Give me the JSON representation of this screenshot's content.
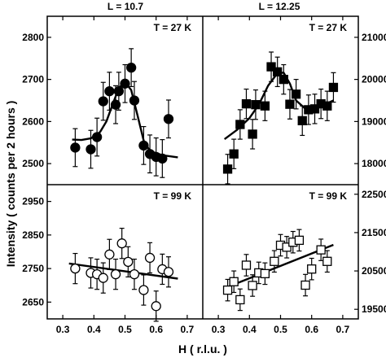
{
  "chart_data": {
    "type": "scatter",
    "xlabel": "H ( r.l.u. )",
    "ylabel": "Intensity ( counts per 2 hours )",
    "x_ticks": [
      "0.3",
      "0.4",
      "0.5",
      "0.6",
      "0.7"
    ],
    "xlim": [
      0.25,
      0.75
    ],
    "columns": [
      {
        "title": "L = 10.7"
      },
      {
        "title": "L = 12.25"
      }
    ],
    "panels": [
      {
        "id": "L10.7-T27K",
        "row": 0,
        "col": 0,
        "temperature": "T = 27 K",
        "marker": "circle",
        "filled": true,
        "ylim": [
          2450,
          2850
        ],
        "y_ticks": [
          2500,
          2600,
          2700,
          2800
        ],
        "tick_side": "left",
        "points": [
          {
            "x": 0.34,
            "y": 2538,
            "err": 45
          },
          {
            "x": 0.39,
            "y": 2534,
            "err": 45
          },
          {
            "x": 0.41,
            "y": 2563,
            "err": 45
          },
          {
            "x": 0.43,
            "y": 2648,
            "err": 45
          },
          {
            "x": 0.45,
            "y": 2672,
            "err": 45
          },
          {
            "x": 0.47,
            "y": 2640,
            "err": 45
          },
          {
            "x": 0.48,
            "y": 2672,
            "err": 45
          },
          {
            "x": 0.5,
            "y": 2690,
            "err": 45
          },
          {
            "x": 0.52,
            "y": 2728,
            "err": 45
          },
          {
            "x": 0.53,
            "y": 2650,
            "err": 45
          },
          {
            "x": 0.56,
            "y": 2543,
            "err": 45
          },
          {
            "x": 0.58,
            "y": 2523,
            "err": 45
          },
          {
            "x": 0.6,
            "y": 2516,
            "err": 45
          },
          {
            "x": 0.62,
            "y": 2512,
            "err": 45
          },
          {
            "x": 0.64,
            "y": 2606,
            "err": 45
          }
        ],
        "fit": [
          [
            0.33,
            2557
          ],
          [
            0.36,
            2556
          ],
          [
            0.39,
            2560
          ],
          [
            0.42,
            2575
          ],
          [
            0.44,
            2600
          ],
          [
            0.46,
            2640
          ],
          [
            0.48,
            2680
          ],
          [
            0.5,
            2693
          ],
          [
            0.52,
            2675
          ],
          [
            0.54,
            2615
          ],
          [
            0.56,
            2555
          ],
          [
            0.58,
            2530
          ],
          [
            0.62,
            2520
          ],
          [
            0.67,
            2515
          ]
        ]
      },
      {
        "id": "L12.25-T27K",
        "row": 0,
        "col": 1,
        "temperature": "T = 27 K",
        "marker": "square",
        "filled": true,
        "ylim": [
          17500,
          21500
        ],
        "y_ticks": [
          18000,
          19000,
          20000,
          21000
        ],
        "tick_side": "right",
        "points": [
          {
            "x": 0.33,
            "y": 17870,
            "err": 350
          },
          {
            "x": 0.35,
            "y": 18230,
            "err": 350
          },
          {
            "x": 0.37,
            "y": 18930,
            "err": 350
          },
          {
            "x": 0.39,
            "y": 19420,
            "err": 350
          },
          {
            "x": 0.41,
            "y": 18700,
            "err": 350
          },
          {
            "x": 0.42,
            "y": 19400,
            "err": 350
          },
          {
            "x": 0.45,
            "y": 19370,
            "err": 350
          },
          {
            "x": 0.47,
            "y": 20300,
            "err": 350
          },
          {
            "x": 0.49,
            "y": 20180,
            "err": 350
          },
          {
            "x": 0.51,
            "y": 20000,
            "err": 350
          },
          {
            "x": 0.53,
            "y": 19410,
            "err": 350
          },
          {
            "x": 0.55,
            "y": 19650,
            "err": 350
          },
          {
            "x": 0.57,
            "y": 19020,
            "err": 350
          },
          {
            "x": 0.59,
            "y": 19280,
            "err": 350
          },
          {
            "x": 0.61,
            "y": 19300,
            "err": 350
          },
          {
            "x": 0.63,
            "y": 19420,
            "err": 350
          },
          {
            "x": 0.65,
            "y": 19370,
            "err": 350
          },
          {
            "x": 0.67,
            "y": 19810,
            "err": 350
          }
        ],
        "fit": [
          [
            0.32,
            18580
          ],
          [
            0.36,
            18800
          ],
          [
            0.4,
            19080
          ],
          [
            0.43,
            19400
          ],
          [
            0.46,
            19850
          ],
          [
            0.49,
            20150
          ],
          [
            0.51,
            20160
          ],
          [
            0.53,
            19900
          ],
          [
            0.55,
            19500
          ],
          [
            0.58,
            19300
          ],
          [
            0.62,
            19330
          ],
          [
            0.67,
            19500
          ]
        ]
      },
      {
        "id": "L10.7-T99K",
        "row": 1,
        "col": 0,
        "temperature": "T = 99 K",
        "marker": "circle",
        "filled": false,
        "ylim": [
          2600,
          3000
        ],
        "y_ticks": [
          2650,
          2750,
          2850,
          2950
        ],
        "tick_side": "left",
        "points": [
          {
            "x": 0.34,
            "y": 2750,
            "err": 45
          },
          {
            "x": 0.39,
            "y": 2737,
            "err": 45
          },
          {
            "x": 0.41,
            "y": 2733,
            "err": 45
          },
          {
            "x": 0.43,
            "y": 2722,
            "err": 45
          },
          {
            "x": 0.45,
            "y": 2792,
            "err": 45
          },
          {
            "x": 0.47,
            "y": 2733,
            "err": 45
          },
          {
            "x": 0.49,
            "y": 2825,
            "err": 45
          },
          {
            "x": 0.51,
            "y": 2770,
            "err": 45
          },
          {
            "x": 0.53,
            "y": 2733,
            "err": 45
          },
          {
            "x": 0.56,
            "y": 2686,
            "err": 45
          },
          {
            "x": 0.58,
            "y": 2782,
            "err": 45
          },
          {
            "x": 0.6,
            "y": 2638,
            "err": 45
          },
          {
            "x": 0.62,
            "y": 2748,
            "err": 45
          },
          {
            "x": 0.64,
            "y": 2740,
            "err": 45
          }
        ],
        "fit": [
          [
            0.32,
            2765
          ],
          [
            0.67,
            2720
          ]
        ]
      },
      {
        "id": "L12.25-T99K",
        "row": 1,
        "col": 1,
        "temperature": "T = 99 K",
        "marker": "square",
        "filled": false,
        "ylim": [
          19250,
          22750
        ],
        "y_ticks": [
          19500,
          20500,
          21500,
          22500
        ],
        "tick_side": "right",
        "points": [
          {
            "x": 0.33,
            "y": 20000,
            "err": 280
          },
          {
            "x": 0.35,
            "y": 20220,
            "err": 280
          },
          {
            "x": 0.37,
            "y": 19750,
            "err": 280
          },
          {
            "x": 0.39,
            "y": 20650,
            "err": 280
          },
          {
            "x": 0.41,
            "y": 20120,
            "err": 280
          },
          {
            "x": 0.43,
            "y": 20450,
            "err": 280
          },
          {
            "x": 0.45,
            "y": 20430,
            "err": 280
          },
          {
            "x": 0.48,
            "y": 20750,
            "err": 280
          },
          {
            "x": 0.5,
            "y": 21170,
            "err": 280
          },
          {
            "x": 0.52,
            "y": 21120,
            "err": 280
          },
          {
            "x": 0.54,
            "y": 21250,
            "err": 280
          },
          {
            "x": 0.56,
            "y": 21300,
            "err": 280
          },
          {
            "x": 0.58,
            "y": 20130,
            "err": 280
          },
          {
            "x": 0.6,
            "y": 20550,
            "err": 280
          },
          {
            "x": 0.63,
            "y": 21050,
            "err": 280
          },
          {
            "x": 0.65,
            "y": 20750,
            "err": 280
          }
        ],
        "fit": [
          [
            0.32,
            20050
          ],
          [
            0.67,
            21180
          ]
        ]
      }
    ]
  }
}
